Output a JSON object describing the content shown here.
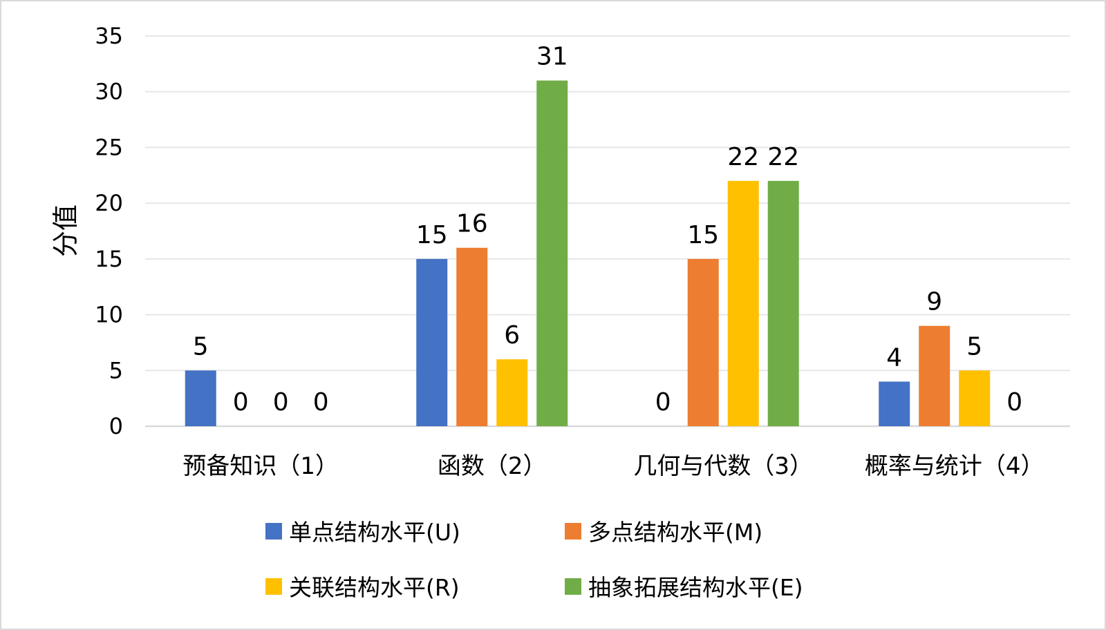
{
  "chart_data": {
    "type": "bar",
    "ylabel": "分值",
    "ylim": [
      0,
      35
    ],
    "yticks": [
      "0",
      "5",
      "10",
      "15",
      "20",
      "25",
      "30",
      "35"
    ],
    "grid": true,
    "legend_position": "bottom",
    "categories": [
      "预备知识（1）",
      "函数（2）",
      "几何与代数（3）",
      "概率与统计（4）"
    ],
    "series": [
      {
        "name": "单点结构水平(U)",
        "color": "#4472C4",
        "values": [
          5,
          15,
          0,
          4
        ]
      },
      {
        "name": "多点结构水平(M)",
        "color": "#ED7D31",
        "values": [
          0,
          16,
          15,
          9
        ]
      },
      {
        "name": "关联结构水平(R)",
        "color": "#FFC000",
        "values": [
          0,
          6,
          22,
          5
        ]
      },
      {
        "name": "抽象拓展结构水平(E)",
        "color": "#70AD47",
        "values": [
          0,
          31,
          22,
          0
        ]
      }
    ]
  }
}
